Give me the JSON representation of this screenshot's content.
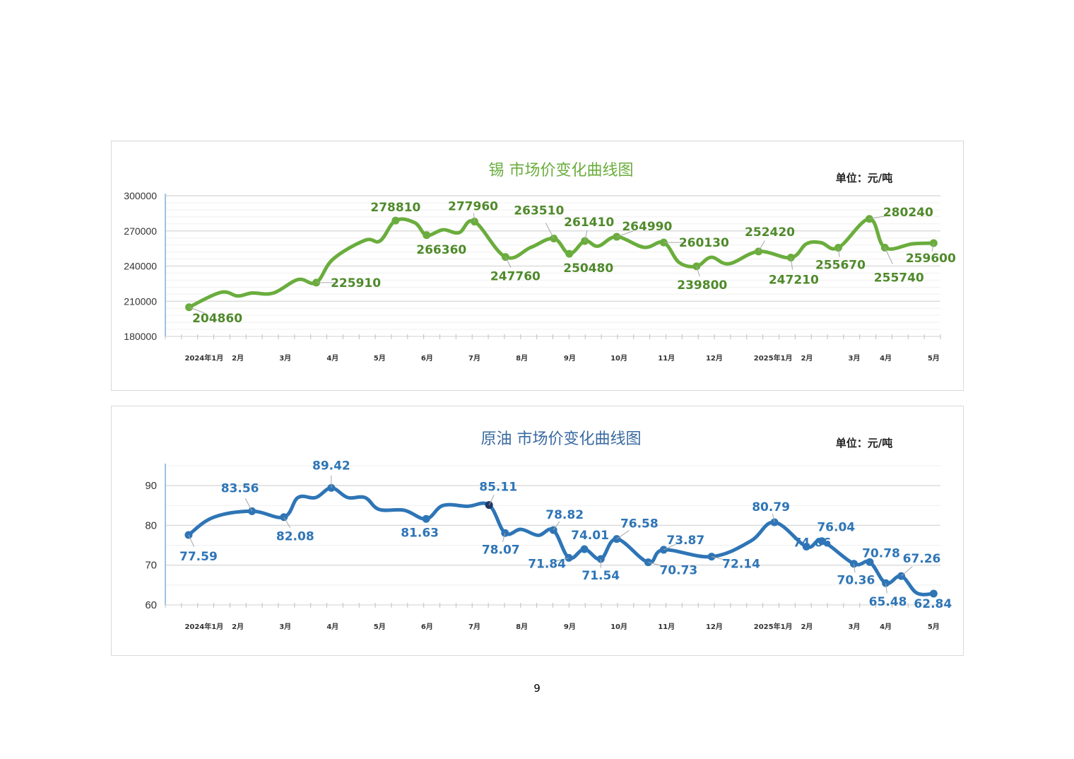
{
  "page_number": "9",
  "chart_data": [
    {
      "type": "line",
      "title": "锡  市场价变化曲线图",
      "unit_label": "单位：元/吨",
      "color": "#6aad3d",
      "label_color": "#4f8a2b",
      "ylim": [
        180000,
        300000
      ],
      "yticks": [
        180000,
        210000,
        240000,
        270000,
        300000
      ],
      "ytick_labels": [
        "180000",
        "210000",
        "240000",
        "270000",
        "300000"
      ],
      "minor_step": 6000,
      "x_unit": "months since Jan 2024",
      "xlim": [
        -0.85,
        16.15
      ],
      "xticks": [
        {
          "x": 0,
          "label": "2024年1月"
        },
        {
          "x": 0.74,
          "label": "2月"
        },
        {
          "x": 1.78,
          "label": "3月"
        },
        {
          "x": 2.82,
          "label": "4月"
        },
        {
          "x": 3.85,
          "label": "5月"
        },
        {
          "x": 4.89,
          "label": "6月"
        },
        {
          "x": 5.93,
          "label": "7月"
        },
        {
          "x": 6.97,
          "label": "8月"
        },
        {
          "x": 8.02,
          "label": "9月"
        },
        {
          "x": 9.1,
          "label": "10月"
        },
        {
          "x": 10.14,
          "label": "11月"
        },
        {
          "x": 11.19,
          "label": "12月"
        },
        {
          "x": 12.48,
          "label": "2025年1月"
        },
        {
          "x": 13.22,
          "label": "2月"
        },
        {
          "x": 14.26,
          "label": "3月"
        },
        {
          "x": 14.95,
          "label": "4月"
        },
        {
          "x": 16,
          "label": "5月"
        }
      ],
      "line": [
        [
          -0.33,
          204860
        ],
        [
          0.36,
          217500
        ],
        [
          0.74,
          214500
        ],
        [
          1.05,
          217000
        ],
        [
          1.52,
          217000
        ],
        [
          2.06,
          228500
        ],
        [
          2.46,
          225910
        ],
        [
          2.83,
          246000
        ],
        [
          3.53,
          262000
        ],
        [
          3.86,
          261500
        ],
        [
          4.2,
          278810
        ],
        [
          4.62,
          277000
        ],
        [
          4.88,
          266360
        ],
        [
          5.24,
          271000
        ],
        [
          5.59,
          268500
        ],
        [
          5.93,
          277960
        ],
        [
          6.61,
          247760
        ],
        [
          7.17,
          256000
        ],
        [
          7.67,
          263510
        ],
        [
          8.01,
          250480
        ],
        [
          8.35,
          261410
        ],
        [
          8.64,
          257000
        ],
        [
          9.05,
          264990
        ],
        [
          9.65,
          256000
        ],
        [
          10.08,
          260130
        ],
        [
          10.42,
          243000
        ],
        [
          10.8,
          239800
        ],
        [
          11.12,
          247500
        ],
        [
          11.51,
          242000
        ],
        [
          12.16,
          252420
        ],
        [
          12.87,
          247210
        ],
        [
          13.21,
          259000
        ],
        [
          13.53,
          260000
        ],
        [
          13.91,
          255670
        ],
        [
          14.59,
          280240
        ],
        [
          14.93,
          255740
        ],
        [
          15.54,
          259000
        ],
        [
          16.0,
          259600
        ]
      ],
      "points": [
        {
          "x": -0.33,
          "y": 204860,
          "label": "204860"
        },
        {
          "x": 2.46,
          "y": 225910,
          "label": "225910"
        },
        {
          "x": 4.2,
          "y": 278810,
          "label": "278810"
        },
        {
          "x": 4.88,
          "y": 266360,
          "label": "266360"
        },
        {
          "x": 5.93,
          "y": 277960,
          "label": "277960"
        },
        {
          "x": 6.61,
          "y": 247760,
          "label": "247760"
        },
        {
          "x": 7.67,
          "y": 263510,
          "label": "263510"
        },
        {
          "x": 8.01,
          "y": 250480,
          "label": "250480"
        },
        {
          "x": 8.35,
          "y": 261410,
          "label": "261410"
        },
        {
          "x": 9.05,
          "y": 264990,
          "label": "264990"
        },
        {
          "x": 10.08,
          "y": 260130,
          "label": "260130"
        },
        {
          "x": 10.8,
          "y": 239800,
          "label": "239800"
        },
        {
          "x": 12.16,
          "y": 252420,
          "label": "252420"
        },
        {
          "x": 12.87,
          "y": 247210,
          "label": "247210"
        },
        {
          "x": 13.91,
          "y": 255670,
          "label": "255670"
        },
        {
          "x": 14.59,
          "y": 280240,
          "label": "280240"
        },
        {
          "x": 14.93,
          "y": 255740,
          "label": "255740"
        },
        {
          "x": 16.0,
          "y": 259600,
          "label": "259600"
        }
      ]
    },
    {
      "type": "line",
      "title": "原油  市场价变化曲线图",
      "unit_label": "单位：元/吨",
      "color": "#2e75b6",
      "label_color": "#2e75b6",
      "highlight_color": "#1f3864",
      "ylim": [
        60,
        95
      ],
      "yticks": [
        60,
        70,
        80,
        90
      ],
      "ytick_labels": [
        "60",
        "70",
        "80",
        "90"
      ],
      "minor_step": 5,
      "x_unit": "months since Jan 2024",
      "xlim": [
        -0.85,
        16.15
      ],
      "xticks": [
        {
          "x": 0,
          "label": "2024年1月"
        },
        {
          "x": 0.74,
          "label": "2月"
        },
        {
          "x": 1.78,
          "label": "3月"
        },
        {
          "x": 2.82,
          "label": "4月"
        },
        {
          "x": 3.85,
          "label": "5月"
        },
        {
          "x": 4.89,
          "label": "6月"
        },
        {
          "x": 5.93,
          "label": "7月"
        },
        {
          "x": 6.97,
          "label": "8月"
        },
        {
          "x": 8.02,
          "label": "9月"
        },
        {
          "x": 9.1,
          "label": "10月"
        },
        {
          "x": 10.14,
          "label": "11月"
        },
        {
          "x": 11.19,
          "label": "12月"
        },
        {
          "x": 12.48,
          "label": "2025年1月"
        },
        {
          "x": 13.22,
          "label": "2月"
        },
        {
          "x": 14.26,
          "label": "3月"
        },
        {
          "x": 14.95,
          "label": "4月"
        },
        {
          "x": 16,
          "label": "5月"
        }
      ],
      "line": [
        [
          -0.34,
          77.59
        ],
        [
          0.2,
          82
        ],
        [
          1.05,
          83.56
        ],
        [
          1.75,
          82.08
        ],
        [
          2.06,
          87
        ],
        [
          2.45,
          87
        ],
        [
          2.79,
          89.42
        ],
        [
          3.15,
          87
        ],
        [
          3.53,
          87
        ],
        [
          3.84,
          84
        ],
        [
          4.39,
          83.8
        ],
        [
          4.87,
          81.63
        ],
        [
          5.24,
          85
        ],
        [
          5.78,
          84.8
        ],
        [
          6.25,
          85.11
        ],
        [
          6.6,
          78.07
        ],
        [
          6.95,
          79
        ],
        [
          7.33,
          77.5
        ],
        [
          7.66,
          78.82
        ],
        [
          8.0,
          71.84
        ],
        [
          8.34,
          74.01
        ],
        [
          8.7,
          71.54
        ],
        [
          9.05,
          76.58
        ],
        [
          9.74,
          70.73
        ],
        [
          10.08,
          73.87
        ],
        [
          11.13,
          72.14
        ],
        [
          11.98,
          76
        ],
        [
          12.51,
          80.79
        ],
        [
          13.21,
          74.66
        ],
        [
          13.55,
          76.04
        ],
        [
          14.25,
          70.36
        ],
        [
          14.6,
          70.78
        ],
        [
          14.95,
          65.48
        ],
        [
          15.29,
          67.26
        ],
        [
          15.63,
          63
        ],
        [
          16.0,
          62.84
        ]
      ],
      "points": [
        {
          "x": -0.34,
          "y": 77.59,
          "label": "77.59"
        },
        {
          "x": 1.05,
          "y": 83.56,
          "label": "83.56"
        },
        {
          "x": 1.75,
          "y": 82.08,
          "label": "82.08"
        },
        {
          "x": 2.79,
          "y": 89.42,
          "label": "89.42"
        },
        {
          "x": 4.87,
          "y": 81.63,
          "label": "81.63"
        },
        {
          "x": 6.25,
          "y": 85.11,
          "label": "85.11",
          "highlight": true
        },
        {
          "x": 6.6,
          "y": 78.07,
          "label": "78.07"
        },
        {
          "x": 7.66,
          "y": 78.82,
          "label": "78.82"
        },
        {
          "x": 8.0,
          "y": 71.84,
          "label": "71.84"
        },
        {
          "x": 8.34,
          "y": 74.01,
          "label": "74.01"
        },
        {
          "x": 8.7,
          "y": 71.54,
          "label": "71.54"
        },
        {
          "x": 9.05,
          "y": 76.58,
          "label": "76.58"
        },
        {
          "x": 9.74,
          "y": 70.73,
          "label": "70.73"
        },
        {
          "x": 10.08,
          "y": 73.87,
          "label": "73.87"
        },
        {
          "x": 11.13,
          "y": 72.14,
          "label": "72.14"
        },
        {
          "x": 12.51,
          "y": 80.79,
          "label": "80.79"
        },
        {
          "x": 13.21,
          "y": 74.66,
          "label": "74.66"
        },
        {
          "x": 13.55,
          "y": 76.04,
          "label": "76.04"
        },
        {
          "x": 14.25,
          "y": 70.36,
          "label": "70.36"
        },
        {
          "x": 14.6,
          "y": 70.78,
          "label": "70.78"
        },
        {
          "x": 14.95,
          "y": 65.48,
          "label": "65.48"
        },
        {
          "x": 15.29,
          "y": 67.26,
          "label": "67.26"
        },
        {
          "x": 16.0,
          "y": 62.84,
          "label": "62.84"
        }
      ]
    }
  ]
}
